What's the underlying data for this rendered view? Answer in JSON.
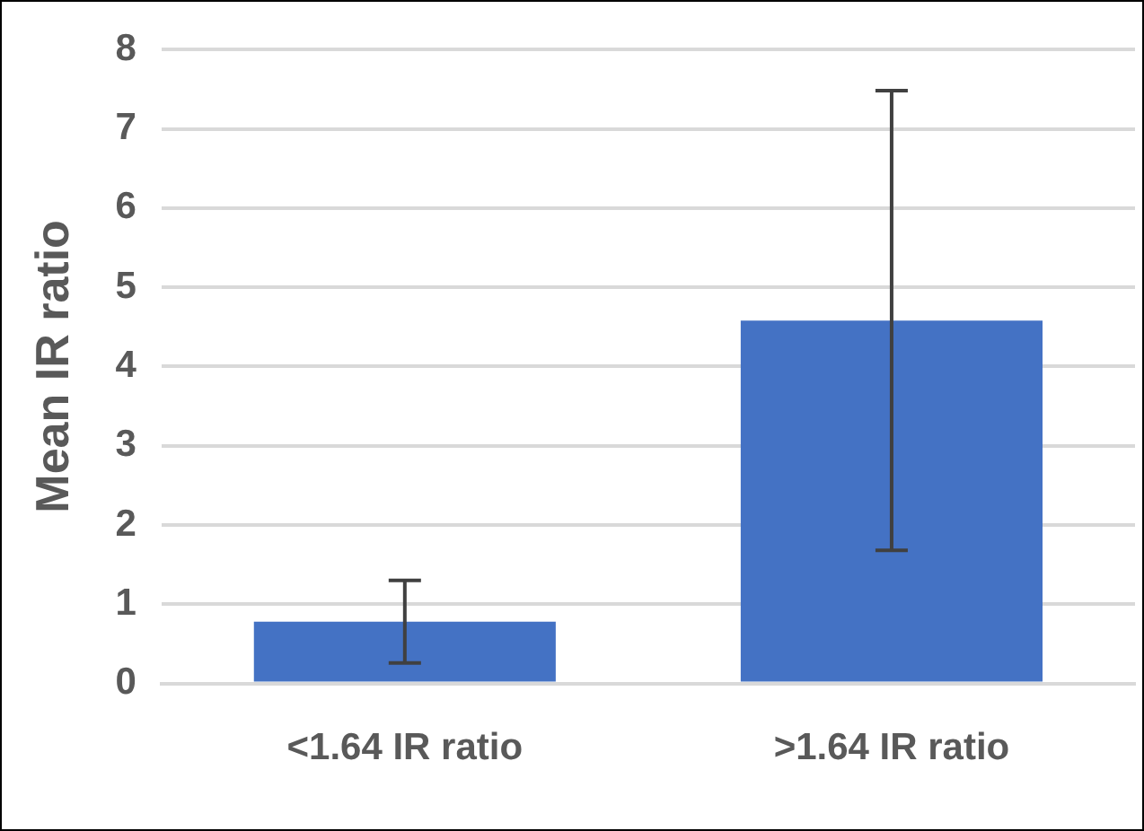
{
  "chart_data": {
    "type": "bar",
    "ylabel": "Mean IR ratio",
    "categories": [
      "<1.64 IR ratio",
      ">1.64 IR ratio"
    ],
    "values": [
      0.78,
      4.58
    ],
    "errors": [
      0.52,
      2.9
    ],
    "color": "#4472c4",
    "ylim": [
      0,
      8
    ],
    "yticks": [
      0,
      1,
      2,
      3,
      4,
      5,
      6,
      7,
      8
    ],
    "grid": "y"
  }
}
